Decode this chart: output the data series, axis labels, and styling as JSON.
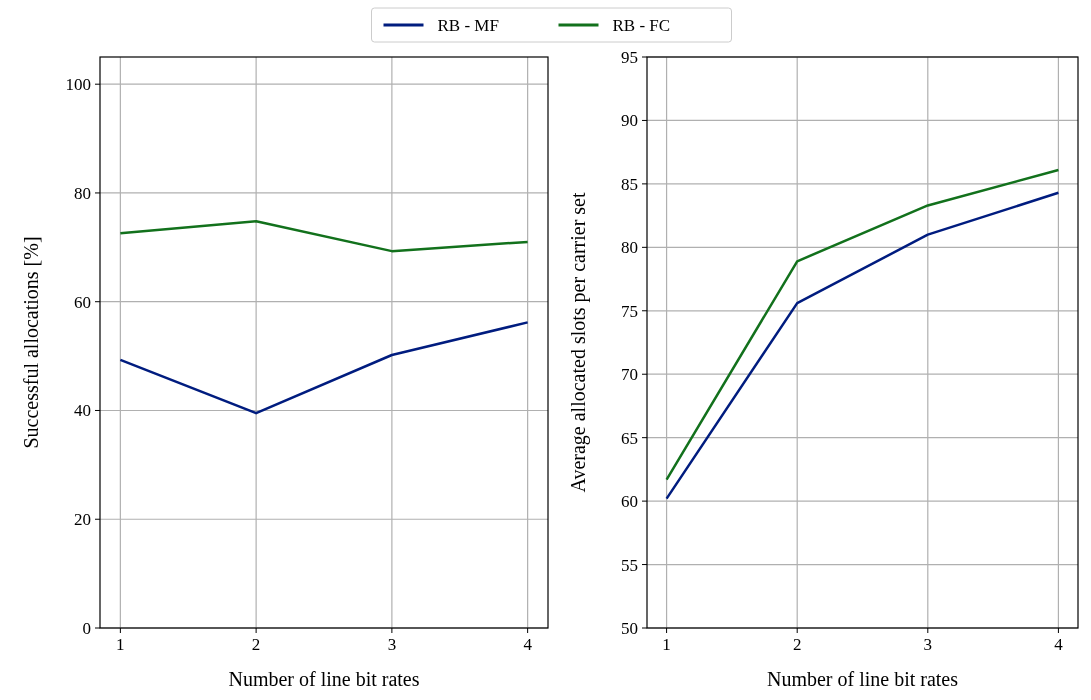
{
  "chart_data": [
    {
      "type": "line",
      "xlabel": "Number of line bit rates",
      "ylabel": "Successful allocations [%]",
      "x": [
        1,
        2,
        3,
        4
      ],
      "xlim": [
        0.85,
        4.15
      ],
      "xticks": [
        1,
        2,
        3,
        4
      ],
      "ylim": [
        0,
        105
      ],
      "yticks": [
        0,
        20,
        40,
        60,
        80,
        100
      ],
      "grid": true,
      "legend": "top",
      "line_style": "solid",
      "series": [
        {
          "name": "RB - MF",
          "color": "#001c7f",
          "values": [
            49.3,
            39.5,
            50.2,
            56.2
          ]
        },
        {
          "name": "RB - FC",
          "color": "#12711c",
          "values": [
            72.6,
            74.8,
            69.3,
            71.0
          ]
        }
      ]
    },
    {
      "type": "line",
      "xlabel": "Number of line bit rates",
      "ylabel": "Average allocated slots per carrier set",
      "x": [
        1,
        2,
        3,
        4
      ],
      "xlim": [
        0.85,
        4.15
      ],
      "xticks": [
        1,
        2,
        3,
        4
      ],
      "ylim": [
        50,
        95
      ],
      "yticks": [
        50,
        55,
        60,
        65,
        70,
        75,
        80,
        85,
        90,
        95
      ],
      "grid": true,
      "line_style": "solid",
      "series": [
        {
          "color": "#001c7f",
          "values": [
            60.2,
            75.6,
            81.0,
            84.3
          ]
        },
        {
          "color": "#12711c",
          "values": [
            61.7,
            78.9,
            83.3,
            86.1
          ]
        }
      ]
    }
  ]
}
